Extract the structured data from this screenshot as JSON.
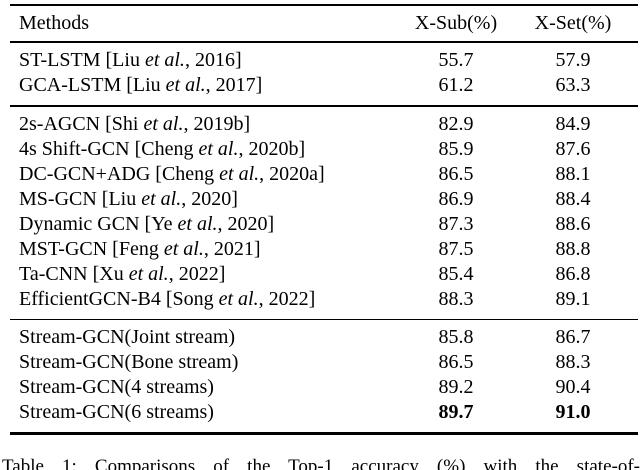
{
  "table": {
    "header": {
      "methods": "Methods",
      "xsub": "X-Sub(%)",
      "xset": "X-Set(%)"
    },
    "groups": [
      {
        "rows": [
          {
            "pre": "ST-LSTM [Liu ",
            "etal": "et al.",
            "post": ", 2016]",
            "xsub": "55.7",
            "xset": "57.9"
          },
          {
            "pre": "GCA-LSTM [Liu ",
            "etal": "et al.",
            "post": ", 2017]",
            "xsub": "61.2",
            "xset": "63.3"
          }
        ]
      },
      {
        "rows": [
          {
            "pre": "2s-AGCN [Shi ",
            "etal": "et al.",
            "post": ", 2019b]",
            "xsub": "82.9",
            "xset": "84.9"
          },
          {
            "pre": "4s Shift-GCN [Cheng ",
            "etal": "et al.",
            "post": ", 2020b]",
            "xsub": "85.9",
            "xset": "87.6"
          },
          {
            "pre": "DC-GCN+ADG [Cheng ",
            "etal": "et al.",
            "post": ", 2020a]",
            "xsub": "86.5",
            "xset": "88.1"
          },
          {
            "pre": "MS-GCN [Liu ",
            "etal": "et al.",
            "post": ", 2020]",
            "xsub": "86.9",
            "xset": "88.4"
          },
          {
            "pre": "Dynamic GCN [Ye ",
            "etal": "et al.",
            "post": ", 2020]",
            "xsub": "87.3",
            "xset": "88.6"
          },
          {
            "pre": "MST-GCN [Feng ",
            "etal": "et al.",
            "post": ", 2021]",
            "xsub": "87.5",
            "xset": "88.8"
          },
          {
            "pre": "Ta-CNN [Xu ",
            "etal": "et al.",
            "post": ", 2022]",
            "xsub": "85.4",
            "xset": "86.8"
          },
          {
            "pre": "EfficientGCN-B4 [Song ",
            "etal": "et al.",
            "post": ", 2022]",
            "xsub": "88.3",
            "xset": "89.1"
          }
        ]
      },
      {
        "rows": [
          {
            "pre": "Stream-GCN(Joint stream)",
            "xsub": "85.8",
            "xset": "86.7"
          },
          {
            "pre": "Stream-GCN(Bone stream)",
            "xsub": "86.5",
            "xset": "88.3"
          },
          {
            "pre": "Stream-GCN(4 streams)",
            "xsub": "89.2",
            "xset": "90.4"
          },
          {
            "pre": "Stream-GCN(6 streams)",
            "xsub": "89.7",
            "xset": "91.0"
          }
        ]
      }
    ]
  },
  "caption": {
    "text": "Table 1: Comparisons of the Top-1 accuracy (%) with the state-of-"
  }
}
